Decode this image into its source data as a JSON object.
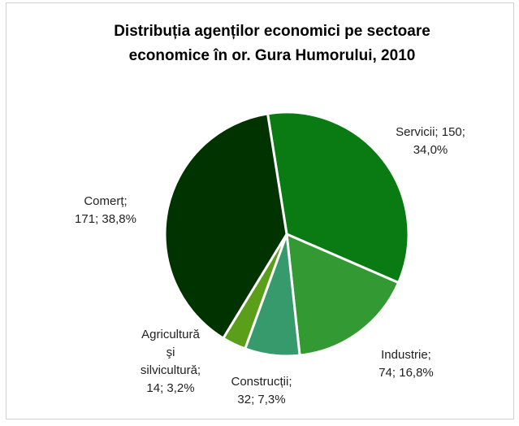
{
  "chart_data": {
    "type": "pie",
    "title": "Distribuția agenților economici pe sectoare economice în or. Gura Humorului, 2010",
    "categories": [
      "Servicii",
      "Industrie",
      "Construcții",
      "Agricultură și silvicultură",
      "Comerț"
    ],
    "values": [
      150,
      74,
      32,
      14,
      171
    ],
    "value_labels": [
      [
        "Servicii; 150;",
        "34,0%"
      ],
      [
        "Industrie;",
        "74; 16,8%"
      ],
      [
        "Construcții;",
        "32; 7,3%"
      ],
      [
        "Agricultură",
        "şi",
        "silvicultură;",
        "14; 3,2%"
      ],
      [
        "Comerț;",
        "171; 38,8%"
      ]
    ],
    "colors": [
      "#0a7a12",
      "#339933",
      "#379a6c",
      "#5a9e1a",
      "#013301"
    ]
  }
}
